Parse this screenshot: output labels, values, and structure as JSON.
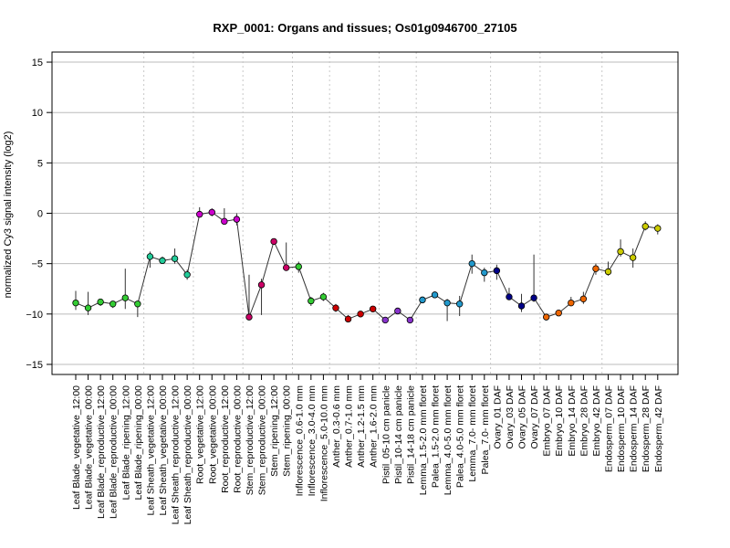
{
  "chart_data": {
    "type": "line",
    "title": "RXP_0001: Organs and tissues; Os01g0946700_27105",
    "ylabel": "normalized Cy3 signal intensity (log2)",
    "xlabel": "",
    "ylim": [
      -16,
      16
    ],
    "yticks": [
      -15,
      -10,
      -5,
      0,
      5,
      10,
      15
    ],
    "grid": "horizontal gridlines at y ticks; dotted vertical separators between sample groups",
    "categories": [
      "Leaf Blade_vegetative_12:00",
      "Leaf Blade_vegetative_00:00",
      "Leaf Blade_reproductive_12:00",
      "Leaf Blade_reproductive_00:00",
      "Leaf Blade_ripening_12:00",
      "Leaf Blade_ripening_00:00",
      "Leaf Sheath_vegetative_12:00",
      "Leaf Sheath_vegetative_00:00",
      "Leaf Sheath_reproductive_12:00",
      "Leaf Sheath_reproductive_00:00",
      "Root_vegetative_12:00",
      "Root_vegetative_00:00",
      "Root_reproductive_12:00",
      "Root_reproductive_00:00",
      "Stem_reproductive_12:00",
      "Stem_reproductive_00:00",
      "Stem_ripening_12:00",
      "Stem_ripening_00:00",
      "Inflorescence_0.6-1.0 mm",
      "Inflorescence_3.0-4.0 mm",
      "Inflorescence_5.0-10.0 mm",
      "Anther_0.3-0.6 mm",
      "Anther_0.7-1.0 mm",
      "Anther_1.2-1.5 mm",
      "Anther_1.6-2.0 mm",
      "Pistil_05-10 cm panicle",
      "Pistil_10-14 cm panicle",
      "Pistil_14-18 cm panicle",
      "Lemma_1.5-2.0 mm floret",
      "Palea_1.5-2.0 mm floret",
      "Lemma_4.0-5.0 mm floret",
      "Palea_4.0-5.0 mm floret",
      "Lemma_7.0- mm floret",
      "Palea_7.0- mm floret",
      "Ovary_01 DAF",
      "Ovary_03 DAF",
      "Ovary_05 DAF",
      "Ovary_07 DAF",
      "Embryo_07 DAF",
      "Embryo_10 DAF",
      "Embryo_14 DAF",
      "Embryo_28 DAF",
      "Embryo_42 DAF",
      "Endosperm_07 DAF",
      "Endosperm_10 DAF",
      "Endosperm_14 DAF",
      "Endosperm_28 DAF",
      "Endosperm_42 DAF"
    ],
    "values": [
      -8.9,
      -9.4,
      -8.8,
      -9.0,
      -8.4,
      -9.0,
      -4.3,
      -4.7,
      -4.5,
      -6.1,
      -0.1,
      0.1,
      -0.8,
      -0.6,
      -10.3,
      -7.1,
      -2.8,
      -5.4,
      -5.3,
      -8.7,
      -8.3,
      -9.4,
      -10.5,
      -10.0,
      -9.5,
      -10.6,
      -9.7,
      -10.6,
      -8.6,
      -8.1,
      -8.9,
      -9.0,
      -5.0,
      -5.9,
      -5.7,
      -8.3,
      -9.2,
      -8.4,
      -10.3,
      -9.9,
      -8.9,
      -8.5,
      -5.5,
      -5.8,
      -3.8,
      -4.4,
      -1.3,
      -1.5
    ],
    "error_low": [
      -9.6,
      -10.1,
      -9.2,
      -9.4,
      -9.5,
      -10.3,
      -5.4,
      -5.0,
      -5.0,
      -6.6,
      -0.4,
      -0.3,
      -1.1,
      -1.2,
      -10.6,
      -10.1,
      -3.0,
      -5.7,
      -5.9,
      -9.2,
      -8.7,
      -9.8,
      -10.8,
      -10.2,
      -9.7,
      -10.9,
      -10.0,
      -10.9,
      -8.9,
      -8.4,
      -10.7,
      -10.2,
      -6.0,
      -6.8,
      -6.6,
      -8.5,
      -9.8,
      -8.8,
      -10.5,
      -10.1,
      -9.2,
      -9.0,
      -6.1,
      -6.2,
      -4.3,
      -5.4,
      -1.7,
      -2.1
    ],
    "error_high": [
      -7.7,
      -7.8,
      -8.6,
      -8.7,
      -5.5,
      -8.8,
      -3.8,
      -4.3,
      -3.5,
      -5.6,
      0.6,
      0.5,
      0.5,
      0.0,
      -6.1,
      -6.5,
      -2.5,
      -2.9,
      -4.8,
      -8.3,
      -7.9,
      -9.0,
      -10.1,
      -9.7,
      -9.2,
      -10.3,
      -9.4,
      -10.3,
      -8.3,
      -7.8,
      -8.5,
      -8.2,
      -4.1,
      -5.4,
      -5.1,
      -7.4,
      -8.0,
      -4.1,
      -10.0,
      -9.6,
      -8.3,
      -7.8,
      -5.0,
      -4.8,
      -2.6,
      -3.5,
      -0.8,
      -1.1
    ],
    "colors": [
      "#3c3",
      "#3c3",
      "#3c3",
      "#3c3",
      "#3c3",
      "#3c3",
      "#2c9",
      "#2c9",
      "#2c9",
      "#2c9",
      "#c0c",
      "#c0c",
      "#c0c",
      "#c0c",
      "#c06",
      "#c06",
      "#c06",
      "#c06",
      "#3c3",
      "#3c3",
      "#3c3",
      "#c00",
      "#c00",
      "#c00",
      "#c00",
      "#83c",
      "#83c",
      "#83c",
      "#29c",
      "#29c",
      "#29c",
      "#29c",
      "#29c",
      "#29c",
      "#008",
      "#008",
      "#008",
      "#008",
      "#e60",
      "#e60",
      "#e60",
      "#e60",
      "#e60",
      "#cc0",
      "#cc0",
      "#cc0",
      "#cc0",
      "#cc0"
    ],
    "group_separators_after": [
      5,
      9,
      13,
      17,
      20,
      24,
      27,
      33,
      37,
      42
    ]
  }
}
